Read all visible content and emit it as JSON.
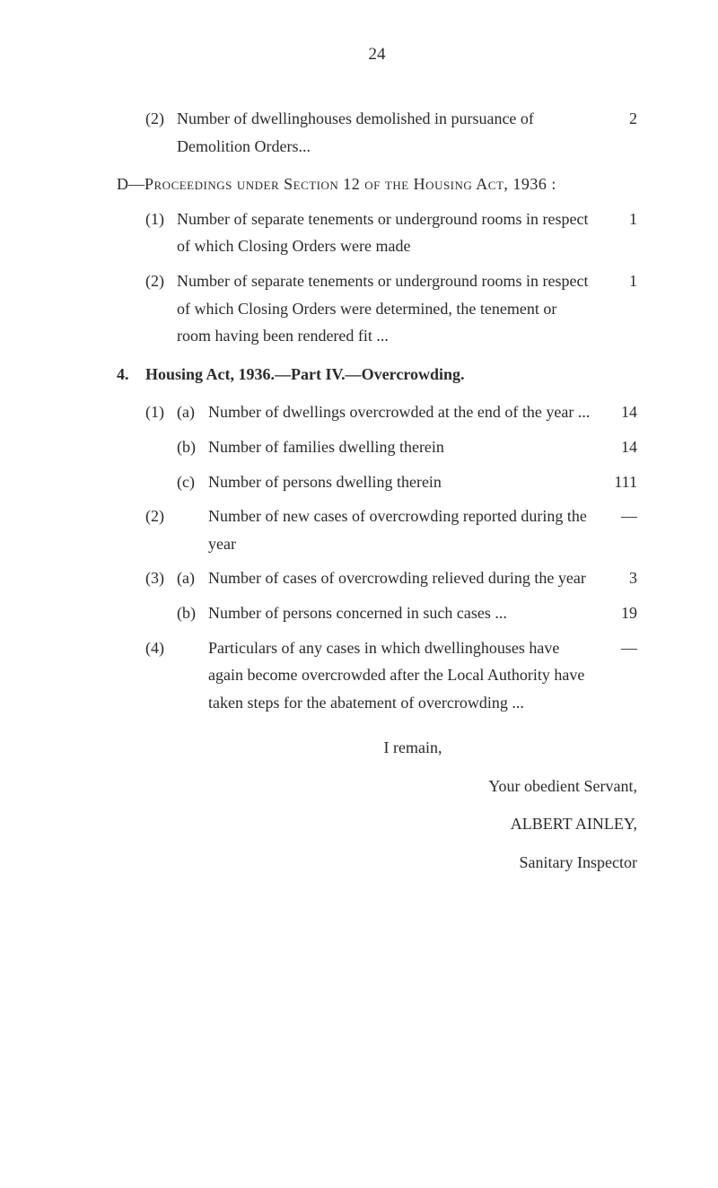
{
  "page_number": "24",
  "items": {
    "item_2_top": {
      "num": "(2)",
      "text": "Number of dwellinghouses demolished in pursuance of Demolition Orders...",
      "value": "2"
    },
    "section_d": {
      "prefix": "D—",
      "text_caps": "Proceedings under Section 12 of the Housing Act, 1936 :"
    },
    "d_1": {
      "num": "(1)",
      "text": "Number of separate tenements or under­ground rooms in respect of which Closing Orders were made",
      "value": "1"
    },
    "d_2": {
      "num": "(2)",
      "text": "Number of separate tenements or under­ground rooms in respect of which Closing Orders were determined, the tenement or room having been rendered fit  ...",
      "value": "1"
    },
    "section_4": {
      "num": "4.",
      "text": "Housing Act, 1936.—Part IV.—Overcrowding."
    },
    "s4_1a": {
      "num1": "(1)",
      "num2": "(a)",
      "text": "Number of dwellings overcrowded at the end of the year  ...",
      "value": "14"
    },
    "s4_1b": {
      "num2": "(b)",
      "text": "Number of families dwelling therein",
      "value": "14"
    },
    "s4_1c": {
      "num2": "(c)",
      "text": "Number of persons dwelling therein",
      "value": "111"
    },
    "s4_2": {
      "num1": "(2)",
      "text": "Number of new cases of overcrowding reported during the year",
      "value": "—"
    },
    "s4_3a": {
      "num1": "(3)",
      "num2": "(a)",
      "text": "Number of cases of overcrowding relieved during the year",
      "value": "3"
    },
    "s4_3b": {
      "num2": "(b)",
      "text": "Number of persons concerned in such cases  ...",
      "value": "19"
    },
    "s4_4": {
      "num1": "(4)",
      "text": "Particulars of any cases in which dwellinghouses have again become overcrowded after the Local Authority have taken steps for the abatement of overcrowding ...",
      "value": "—"
    }
  },
  "signature": {
    "remain": "I remain,",
    "servant": "Your obedient Servant,",
    "name": "ALBERT  AINLEY,",
    "title": "Sanitary Inspector"
  }
}
